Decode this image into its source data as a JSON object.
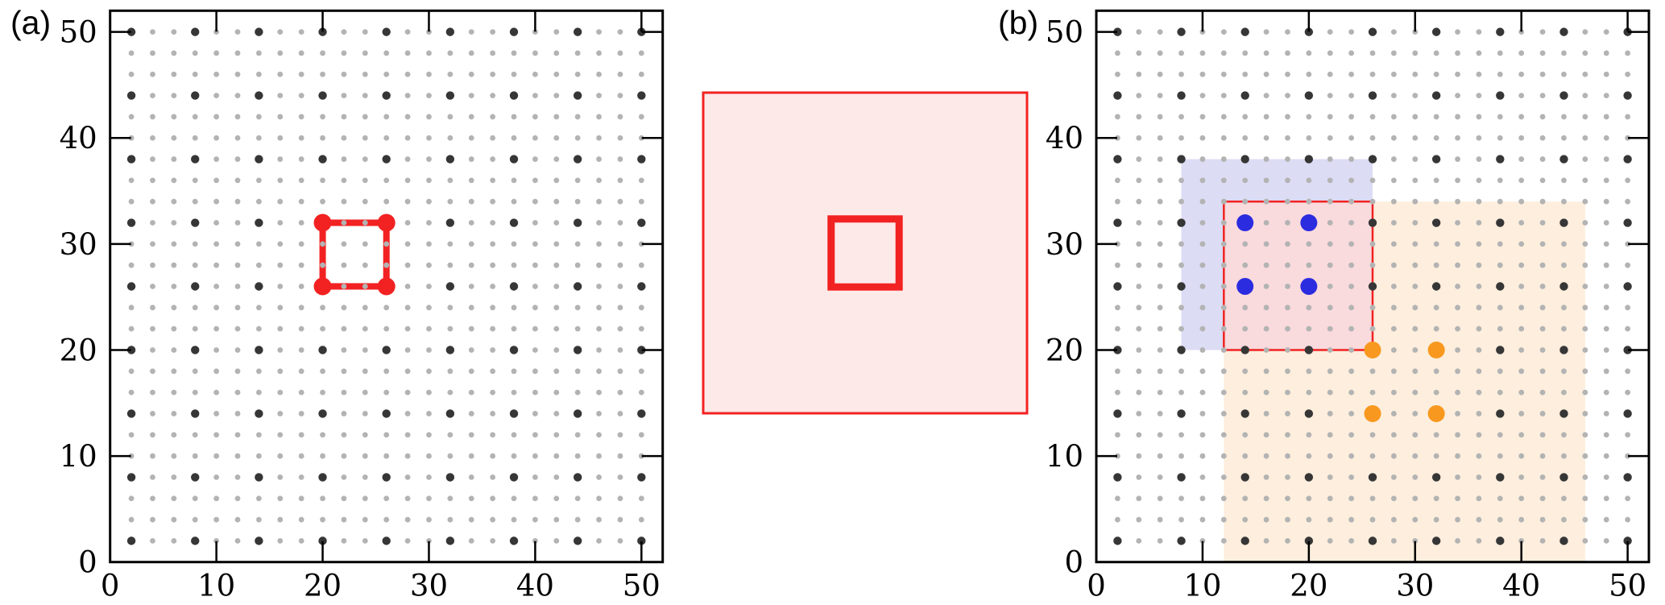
{
  "labels": {
    "panel_a": "(a)",
    "panel_b": "(b)"
  },
  "colors": {
    "red": "#f22222",
    "pink_cell_fill": "#f9dadd",
    "inset_fill": "#fee9e9",
    "lavender_region": "#dcdcf5",
    "orange_region": "#fdeedd",
    "blue_particle": "#2b2ce0",
    "orange_particle": "#f8981f",
    "dark_particle": "#363636",
    "light_particle": "#b3b3b3",
    "axis": "#000000"
  },
  "chart_data": [
    {
      "panel": "a",
      "type": "scatter",
      "title": "",
      "xlabel": "",
      "ylabel": "",
      "xlim": [
        0,
        52
      ],
      "ylim": [
        0,
        52
      ],
      "xticks": [
        0,
        10,
        20,
        30,
        40,
        50
      ],
      "yticks": [
        0,
        10,
        20,
        30,
        40,
        50
      ],
      "grid": false,
      "tick_style": "inward-mirrored-all-sides",
      "annotations": [
        {
          "name": "selected-cell-outline",
          "type": "rect",
          "x0": 20,
          "y0": 26,
          "x1": 26,
          "y1": 32,
          "fill": "none",
          "stroke": "#f22222",
          "stroke_width_px": 8
        }
      ],
      "series": [
        {
          "name": "fine-lattice",
          "marker": "small-dot",
          "color": "#b3b3b3",
          "radius_px": 3.4,
          "lattice": {
            "start": 2,
            "end": 50,
            "step": 2
          }
        },
        {
          "name": "coarse-lattice",
          "marker": "dot",
          "color": "#363636",
          "radius_px": 5.2,
          "lattice": {
            "start": 2,
            "end": 50,
            "step": 6
          }
        },
        {
          "name": "selected-particles",
          "marker": "large-dot",
          "color": "#f22222",
          "radius_px": 11,
          "points": [
            [
              20,
              26
            ],
            [
              26,
              26
            ],
            [
              20,
              32
            ],
            [
              26,
              32
            ]
          ]
        }
      ]
    },
    {
      "panel": "inset",
      "type": "schematic-zoom",
      "outer_square": {
        "fill": "#fee9e9",
        "stroke": "#f22222",
        "stroke_width_px": 3
      },
      "inner_square": {
        "fill": "none",
        "stroke": "#f22222",
        "stroke_width_px": 9,
        "relative_side": 0.21,
        "position": "centered"
      }
    },
    {
      "panel": "b",
      "type": "scatter",
      "title": "",
      "xlabel": "",
      "ylabel": "",
      "xlim": [
        0,
        52
      ],
      "ylim": [
        0,
        52
      ],
      "xticks": [
        0,
        10,
        20,
        30,
        40,
        50
      ],
      "yticks": [
        0,
        10,
        20,
        30,
        40,
        50
      ],
      "grid": false,
      "tick_style": "inward-mirrored-all-sides",
      "annotations": [
        {
          "name": "blue-halo-region",
          "type": "rect",
          "x0": 8,
          "y0": 20,
          "x1": 26,
          "y1": 38,
          "fill": "#dcdcf5",
          "stroke": "none",
          "stroke_width_px": 0
        },
        {
          "name": "orange-halo-region",
          "type": "rect",
          "x0": 12,
          "y0": 0,
          "x1": 46,
          "y1": 34,
          "fill": "#fdeedd",
          "stroke": "none",
          "stroke_width_px": 0
        },
        {
          "name": "red-cell",
          "type": "rect",
          "x0": 12,
          "y0": 20,
          "x1": 26,
          "y1": 34,
          "fill": "#f9dadd",
          "stroke": "#f22222",
          "stroke_width_px": 2.5
        }
      ],
      "series": [
        {
          "name": "fine-lattice",
          "marker": "small-dot",
          "color": "#b3b3b3",
          "radius_px": 3.4,
          "lattice": {
            "start": 2,
            "end": 50,
            "step": 2
          }
        },
        {
          "name": "coarse-lattice",
          "marker": "dot",
          "color": "#363636",
          "radius_px": 5.2,
          "lattice": {
            "start": 2,
            "end": 50,
            "step": 6
          }
        },
        {
          "name": "blue-particles",
          "marker": "large-dot",
          "color": "#2b2ce0",
          "radius_px": 10.5,
          "points": [
            [
              14,
              26
            ],
            [
              20,
              26
            ],
            [
              14,
              32
            ],
            [
              20,
              32
            ]
          ]
        },
        {
          "name": "orange-particles",
          "marker": "large-dot",
          "color": "#f8981f",
          "radius_px": 10.5,
          "points": [
            [
              26,
              14
            ],
            [
              32,
              14
            ],
            [
              26,
              20
            ],
            [
              32,
              20
            ]
          ]
        }
      ]
    }
  ]
}
